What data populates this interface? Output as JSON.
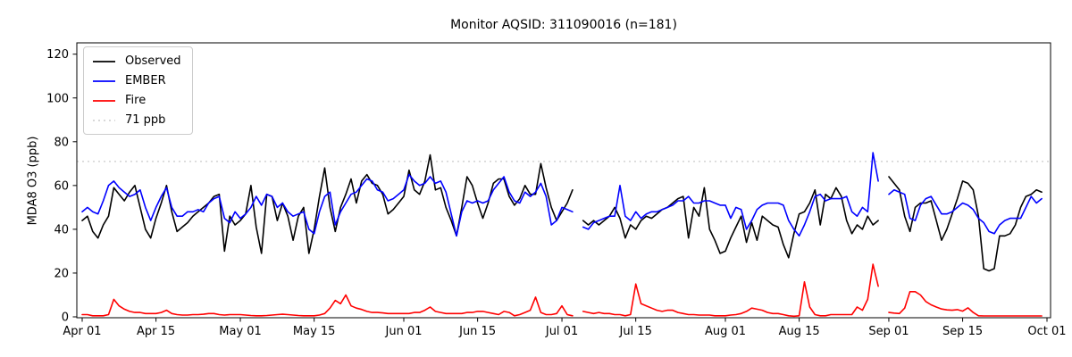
{
  "title": "Monitor AQSID: 311090016 (n=181)",
  "y_axis": {
    "label": "MDA8 O3 (ppb)",
    "ticks": [
      0,
      20,
      40,
      60,
      80,
      100,
      120
    ],
    "range": [
      0,
      125
    ]
  },
  "x_axis": {
    "ticks": [
      {
        "label": "Apr 01",
        "day": 0
      },
      {
        "label": "Apr 15",
        "day": 14
      },
      {
        "label": "May 01",
        "day": 30
      },
      {
        "label": "May 15",
        "day": 44
      },
      {
        "label": "Jun 01",
        "day": 61
      },
      {
        "label": "Jun 15",
        "day": 75
      },
      {
        "label": "Jul 01",
        "day": 91
      },
      {
        "label": "Jul 15",
        "day": 105
      },
      {
        "label": "Aug 01",
        "day": 122
      },
      {
        "label": "Aug 15",
        "day": 136
      },
      {
        "label": "Sep 01",
        "day": 153
      },
      {
        "label": "Sep 15",
        "day": 167
      },
      {
        "label": "Oct 01",
        "day": 183
      }
    ]
  },
  "legend": [
    {
      "label": "Observed",
      "color": "#000000",
      "dash": "none"
    },
    {
      "label": "EMBER",
      "color": "#0000ff",
      "dash": "none"
    },
    {
      "label": "Fire",
      "color": "#ff0000",
      "dash": "none"
    },
    {
      "label": "71 ppb",
      "color": "#d3d3d3",
      "dash": "dotted"
    }
  ],
  "threshold": {
    "value": 71,
    "label": "71 ppb",
    "color": "#d3d3d3"
  },
  "chart_data": {
    "type": "line",
    "title": "Monitor AQSID: 311090016 (n=181)",
    "xlabel": "",
    "ylabel": "MDA8 O3 (ppb)",
    "x_unit": "day_index_from_Apr_01",
    "x_range_days": 183,
    "ylim": [
      0,
      125
    ],
    "missing_days": [
      94,
      152
    ],
    "series": [
      {
        "name": "Observed",
        "color": "#000000",
        "values": [
          44,
          46,
          39,
          36,
          42,
          46,
          59,
          56,
          53,
          57,
          60,
          50,
          40,
          36,
          45,
          52,
          60,
          48,
          39,
          41,
          43,
          46,
          48,
          50,
          52,
          55,
          56,
          30,
          46,
          42,
          44,
          47,
          60,
          41,
          29,
          56,
          55,
          44,
          52,
          46,
          35,
          46,
          50,
          29,
          40,
          55,
          68,
          50,
          39,
          50,
          56,
          63,
          52,
          62,
          65,
          61,
          60,
          56,
          47,
          49,
          52,
          55,
          67,
          58,
          56,
          62,
          74,
          58,
          59,
          50,
          44,
          37,
          50,
          64,
          60,
          52,
          45,
          52,
          61,
          63,
          63,
          55,
          51,
          54,
          60,
          56,
          56,
          70,
          59,
          50,
          44,
          48,
          52,
          58,
          null,
          44,
          42,
          44,
          42,
          44,
          46,
          50,
          45,
          36,
          42,
          40,
          44,
          46,
          45,
          47,
          49,
          50,
          52,
          54,
          55,
          36,
          50,
          46,
          59,
          40,
          35,
          29,
          30,
          36,
          41,
          46,
          34,
          43,
          35,
          46,
          44,
          42,
          41,
          33,
          27,
          38,
          47,
          48,
          52,
          58,
          42,
          56,
          54,
          59,
          55,
          44,
          38,
          42,
          40,
          46,
          42,
          44,
          null,
          64,
          61,
          58,
          46,
          39,
          50,
          52,
          52,
          53,
          44,
          35,
          40,
          47,
          54,
          62,
          61,
          58,
          46,
          22,
          21,
          22,
          37,
          37,
          38,
          42,
          50,
          55,
          56,
          58,
          57
        ]
      },
      {
        "name": "EMBER",
        "color": "#0000ff",
        "values": [
          48,
          50,
          48,
          47,
          53,
          60,
          62,
          59,
          57,
          55,
          56,
          58,
          50,
          44,
          50,
          55,
          59,
          50,
          46,
          46,
          48,
          48,
          49,
          48,
          52,
          54,
          55,
          45,
          43,
          48,
          45,
          47,
          50,
          55,
          51,
          56,
          55,
          50,
          52,
          48,
          46,
          47,
          48,
          40,
          38,
          48,
          55,
          57,
          42,
          48,
          52,
          56,
          57,
          60,
          63,
          62,
          58,
          57,
          53,
          54,
          56,
          58,
          65,
          62,
          60,
          61,
          64,
          61,
          62,
          57,
          47,
          37,
          48,
          53,
          52,
          53,
          52,
          53,
          58,
          61,
          64,
          57,
          53,
          52,
          57,
          55,
          57,
          61,
          55,
          42,
          44,
          50,
          49,
          48,
          null,
          41,
          40,
          43,
          44,
          45,
          46,
          46,
          60,
          46,
          44,
          48,
          45,
          47,
          48,
          48,
          49,
          50,
          51,
          53,
          53,
          55,
          52,
          52,
          53,
          53,
          52,
          51,
          51,
          45,
          50,
          49,
          40,
          44,
          49,
          51,
          52,
          52,
          52,
          51,
          44,
          40,
          37,
          42,
          48,
          55,
          56,
          53,
          54,
          54,
          54,
          55,
          48,
          46,
          50,
          48,
          75,
          62,
          null,
          56,
          58,
          57,
          56,
          45,
          44,
          51,
          54,
          55,
          51,
          47,
          47,
          48,
          50,
          52,
          51,
          49,
          45,
          43,
          39,
          38,
          42,
          44,
          45,
          45,
          45,
          50,
          55,
          52,
          54
        ]
      },
      {
        "name": "Fire",
        "color": "#ff0000",
        "values": [
          1,
          1,
          0.5,
          0.5,
          0.5,
          1,
          8,
          5,
          3.5,
          2.5,
          2,
          2,
          1.5,
          1.5,
          1.5,
          2,
          3,
          1.5,
          1,
          0.8,
          0.8,
          1,
          1,
          1.2,
          1.5,
          1.5,
          1,
          0.8,
          1,
          1,
          1,
          0.8,
          0.6,
          0.5,
          0.5,
          0.6,
          0.8,
          1,
          1.2,
          1,
          0.8,
          0.6,
          0.5,
          0.5,
          0.5,
          0.8,
          1.5,
          4,
          7.5,
          6,
          10,
          5,
          4,
          3.4,
          2.5,
          2,
          2,
          1.8,
          1.5,
          1.5,
          1.5,
          1.5,
          1.5,
          2,
          2,
          3,
          4.5,
          2.5,
          2,
          1.5,
          1.5,
          1.5,
          1.5,
          2,
          2,
          2.5,
          2.5,
          2,
          1.5,
          1,
          2.5,
          2,
          0.5,
          1,
          2,
          3,
          9,
          2,
          1,
          1,
          1.5,
          5,
          1,
          0.5,
          null,
          2.5,
          2,
          1.5,
          2,
          1.5,
          1.5,
          1,
          1,
          0.5,
          1,
          15,
          6,
          5,
          4,
          3,
          2.5,
          3,
          3,
          2,
          1.5,
          1,
          1,
          0.8,
          0.8,
          0.8,
          0.5,
          0.5,
          0.5,
          0.8,
          1,
          1.5,
          2.5,
          4,
          3.5,
          3,
          2,
          1.5,
          1.5,
          1,
          0.5,
          0.3,
          0.5,
          16,
          4.5,
          1,
          0.5,
          0.5,
          1,
          1,
          1,
          1,
          1,
          4.5,
          3,
          8,
          24,
          14,
          null,
          2,
          1.7,
          1.5,
          4,
          11.5,
          11.5,
          10,
          7,
          5.5,
          4.5,
          3.6,
          3.2,
          3,
          3.3,
          2.6,
          4.1,
          2,
          0.5,
          0.4,
          0.4,
          0.4,
          0.4,
          0.4,
          0.4,
          0.4,
          0.4,
          0.4,
          0.4,
          0.4,
          0.4
        ]
      }
    ],
    "annotations": [
      {
        "type": "hline",
        "y": 71,
        "label": "71 ppb",
        "style": "dotted",
        "color": "#d3d3d3"
      }
    ],
    "legend_position": "upper-left",
    "grid": false
  }
}
